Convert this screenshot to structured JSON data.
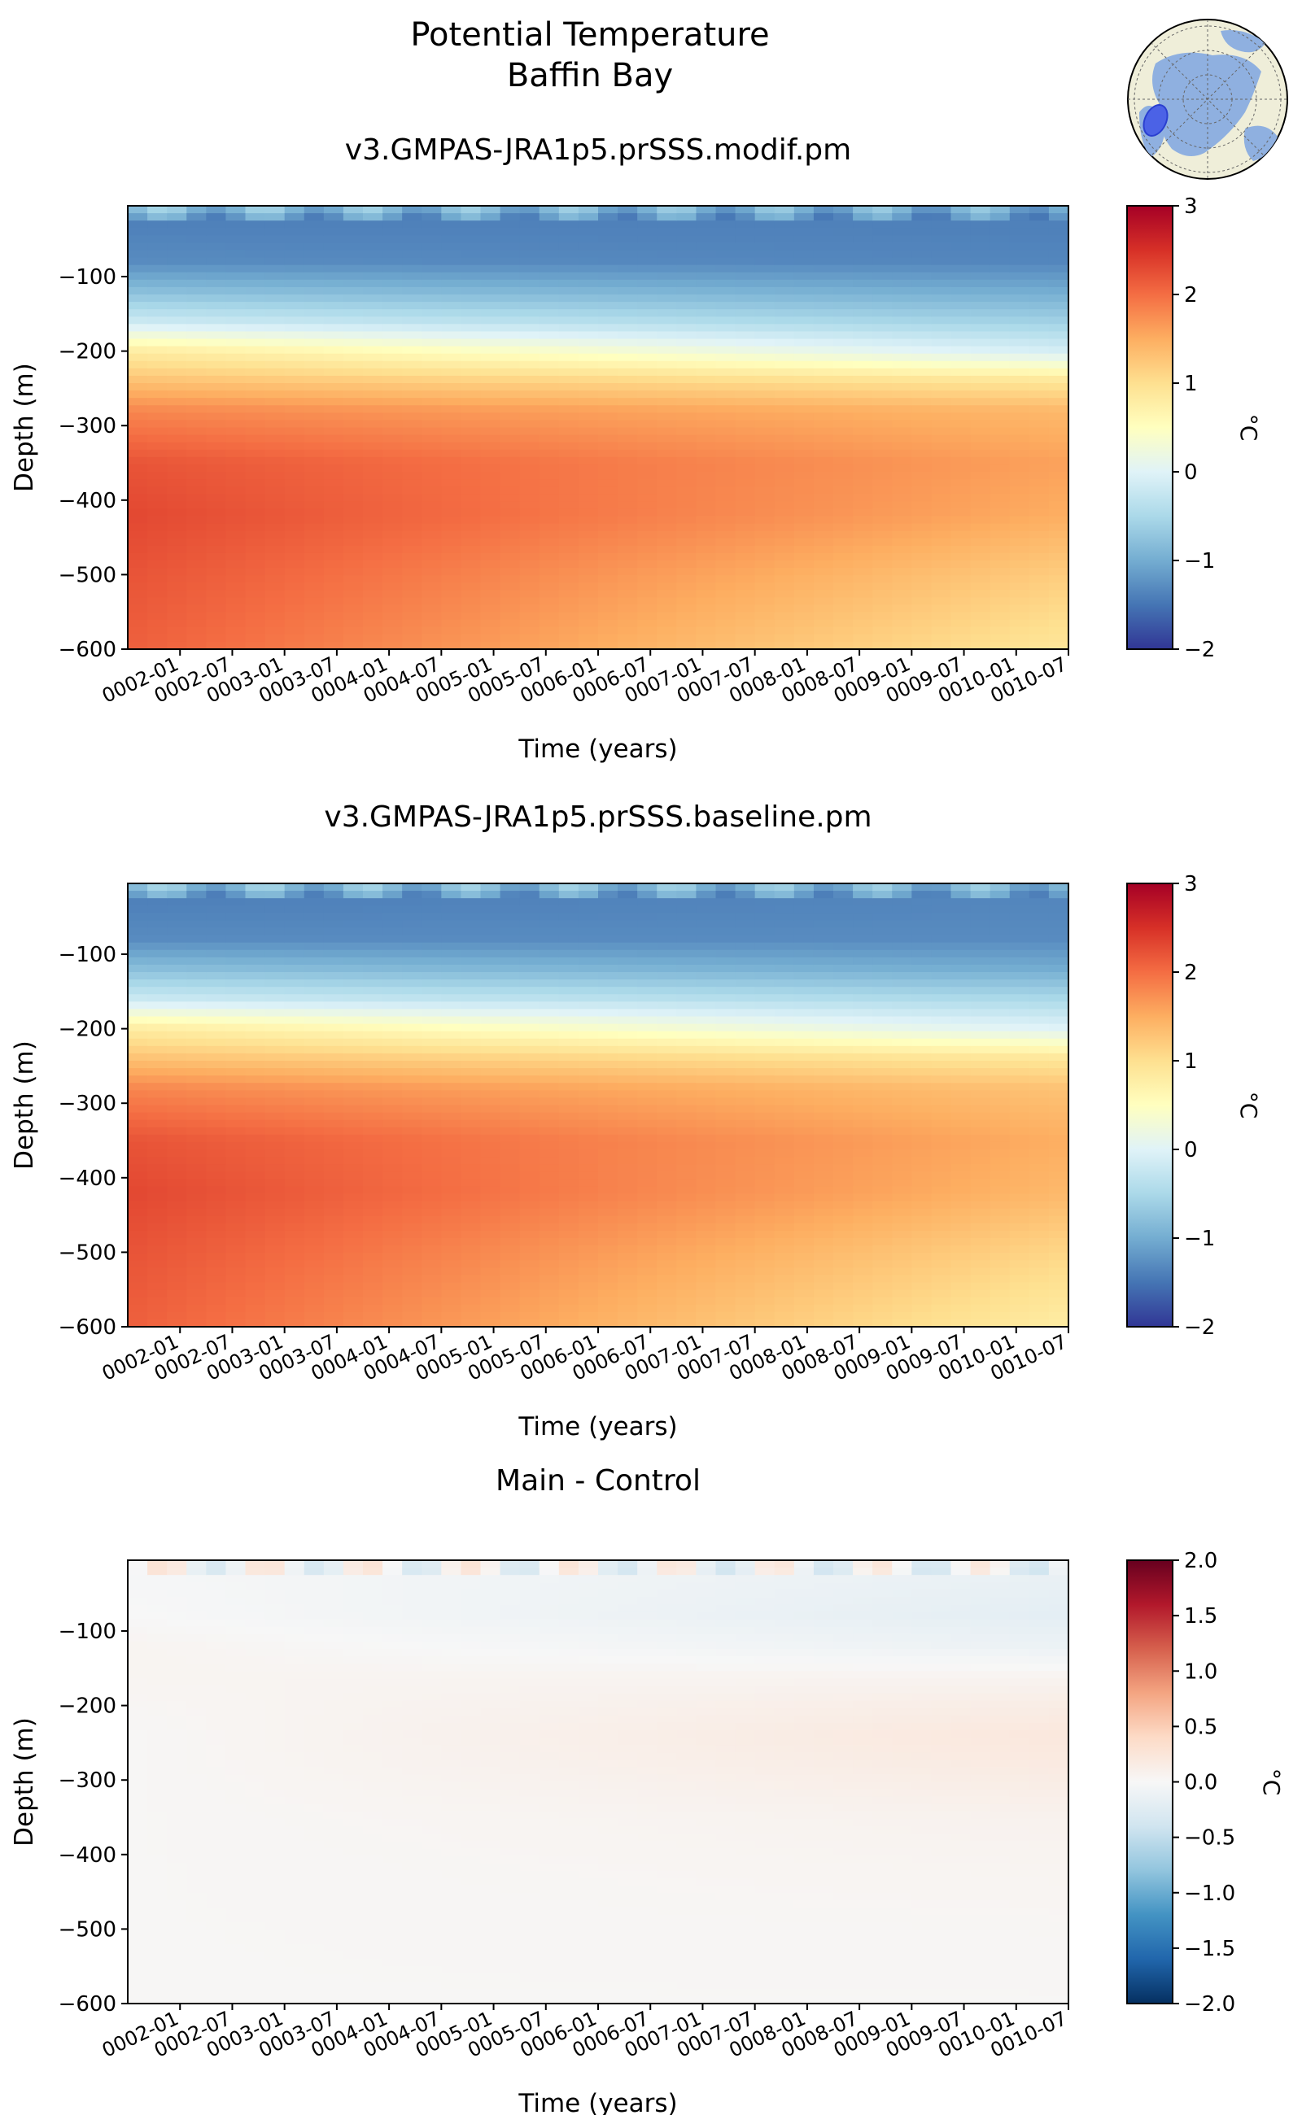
{
  "suptitle": {
    "line1": "Potential Temperature",
    "line2": "Baffin Bay"
  },
  "inset_map": {
    "description_icon": "polar-globe-icon",
    "region_color": "#4b62e6",
    "ocean_color": "#8fb0e0",
    "land_color": "#efeed9"
  },
  "chart_data": [
    {
      "type": "heatmap",
      "title": "v3.GMPAS-JRA1p5.prSSS.modif.pm",
      "xlabel": "Time (years)",
      "ylabel": "Depth (m)",
      "x_ticks": [
        "0002-01",
        "0002-07",
        "0003-01",
        "0003-07",
        "0004-01",
        "0004-07",
        "0005-01",
        "0005-07",
        "0006-01",
        "0006-07",
        "0007-01",
        "0007-07",
        "0008-01",
        "0008-07",
        "0009-01",
        "0009-07",
        "0010-01",
        "0010-07"
      ],
      "xlim": [
        "0001-07",
        "0010-07"
      ],
      "ylim": [
        -600,
        -5
      ],
      "y_ticks": [
        -100,
        -200,
        -300,
        -400,
        -500,
        -600
      ],
      "y_tick_labels": [
        "−100",
        "−200",
        "−300",
        "−400",
        "−500",
        "−600"
      ],
      "colorbar": {
        "label": "°C",
        "min": -2,
        "max": 3,
        "ticks": [
          "3",
          "2",
          "1",
          "0",
          "−1",
          "−2"
        ],
        "colormap": "RdYlBu_r"
      },
      "profile": {
        "depths": [
          -5,
          -30,
          -80,
          -120,
          -160,
          -200,
          -240,
          -280,
          -350,
          -420,
          -500,
          -600
        ],
        "temp_start": [
          -0.7,
          -1.4,
          -1.3,
          -0.8,
          -0.2,
          0.8,
          1.3,
          1.8,
          2.2,
          2.3,
          2.2,
          2.1
        ],
        "temp_end": [
          -0.9,
          -1.4,
          -1.35,
          -1.0,
          -0.6,
          -0.1,
          0.9,
          1.4,
          1.6,
          1.5,
          1.2,
          0.9
        ]
      }
    },
    {
      "type": "heatmap",
      "title": "v3.GMPAS-JRA1p5.prSSS.baseline.pm",
      "xlabel": "Time (years)",
      "ylabel": "Depth (m)",
      "x_ticks": [
        "0002-01",
        "0002-07",
        "0003-01",
        "0003-07",
        "0004-01",
        "0004-07",
        "0005-01",
        "0005-07",
        "0006-01",
        "0006-07",
        "0007-01",
        "0007-07",
        "0008-01",
        "0008-07",
        "0009-01",
        "0009-07",
        "0010-01",
        "0010-07"
      ],
      "xlim": [
        "0001-07",
        "0010-07"
      ],
      "ylim": [
        -600,
        -5
      ],
      "y_ticks": [
        -100,
        -200,
        -300,
        -400,
        -500,
        -600
      ],
      "y_tick_labels": [
        "−100",
        "−200",
        "−300",
        "−400",
        "−500",
        "−600"
      ],
      "colorbar": {
        "label": "°C",
        "min": -2,
        "max": 3,
        "ticks": [
          "3",
          "2",
          "1",
          "0",
          "−1",
          "−2"
        ],
        "colormap": "RdYlBu_r"
      },
      "profile": {
        "depths": [
          -5,
          -30,
          -80,
          -120,
          -160,
          -200,
          -240,
          -280,
          -350,
          -420,
          -500,
          -600
        ],
        "temp_start": [
          -0.7,
          -1.4,
          -1.3,
          -0.8,
          -0.2,
          0.8,
          1.3,
          1.8,
          2.2,
          2.3,
          2.2,
          2.1
        ],
        "temp_end": [
          -0.8,
          -1.35,
          -1.3,
          -1.0,
          -0.5,
          0.0,
          0.9,
          1.3,
          1.5,
          1.4,
          1.1,
          0.8
        ]
      }
    },
    {
      "type": "heatmap",
      "title": "Main - Control",
      "xlabel": "Time (years)",
      "ylabel": "Depth (m)",
      "x_ticks": [
        "0002-01",
        "0002-07",
        "0003-01",
        "0003-07",
        "0004-01",
        "0004-07",
        "0005-01",
        "0005-07",
        "0006-01",
        "0006-07",
        "0007-01",
        "0007-07",
        "0008-01",
        "0008-07",
        "0009-01",
        "0009-07",
        "0010-01",
        "0010-07"
      ],
      "xlim": [
        "0001-07",
        "0010-07"
      ],
      "ylim": [
        -600,
        -5
      ],
      "y_ticks": [
        -100,
        -200,
        -300,
        -400,
        -500,
        -600
      ],
      "y_tick_labels": [
        "−100",
        "−200",
        "−300",
        "−400",
        "−500",
        "−600"
      ],
      "colorbar": {
        "label": "°C",
        "min": -2,
        "max": 2,
        "ticks": [
          "2.0",
          "1.5",
          "1.0",
          "0.5",
          "0.0",
          "−0.5",
          "−1.0",
          "−1.5",
          "−2.0"
        ],
        "colormap": "RdBu_r"
      },
      "profile": {
        "depths": [
          -5,
          -30,
          -80,
          -120,
          -160,
          -200,
          -240,
          -280,
          -350,
          -420,
          -500,
          -600
        ],
        "temp_start": [
          0.0,
          -0.02,
          0.0,
          0.05,
          0.05,
          0.03,
          0.02,
          0.02,
          0.02,
          0.02,
          0.02,
          0.02
        ],
        "temp_end": [
          -0.05,
          -0.15,
          -0.2,
          -0.12,
          0.05,
          0.15,
          0.22,
          0.18,
          0.08,
          0.05,
          0.03,
          0.02
        ]
      }
    }
  ]
}
